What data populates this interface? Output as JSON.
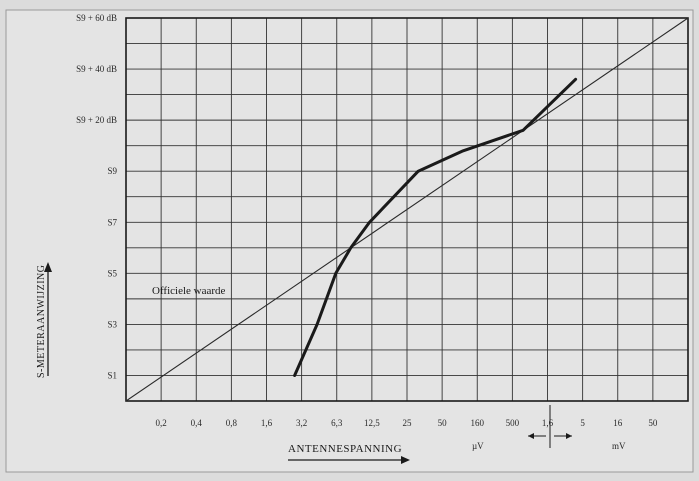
{
  "chart_data": {
    "type": "line",
    "xlabel": "ANTENNESPANNING",
    "ylabel": "S-METERAANWIJZING",
    "x_ticks": [
      "0,2",
      "0,4",
      "0,8",
      "1,6",
      "3,2",
      "6,3",
      "12,5",
      "25",
      "50",
      "160",
      "500",
      "1,6",
      "5",
      "16",
      "50"
    ],
    "x_units": {
      "uV": "µV",
      "mV": "mV"
    },
    "y_ticks": [
      "S1",
      "S3",
      "S5",
      "S7",
      "S9",
      "S9 + 20 dB",
      "S9 + 40 dB",
      "S9 + 60 dB"
    ],
    "grid": true,
    "series": [
      {
        "name": "Officiele waarde",
        "x": [
          0.0,
          15.0
        ],
        "y": [
          0,
          15
        ]
      },
      {
        "name": "",
        "x": [
          4.5,
          5.1,
          5.6,
          6.0,
          6.5,
          7.8,
          9.0,
          10.6,
          12.0
        ],
        "y": [
          1,
          3,
          5,
          6,
          7,
          9,
          9.8,
          10.6,
          12.6
        ]
      }
    ],
    "xlim": [
      0,
      15
    ],
    "ylim": [
      0,
      15
    ]
  },
  "annotations": {
    "official_label": "Officiele waarde"
  }
}
